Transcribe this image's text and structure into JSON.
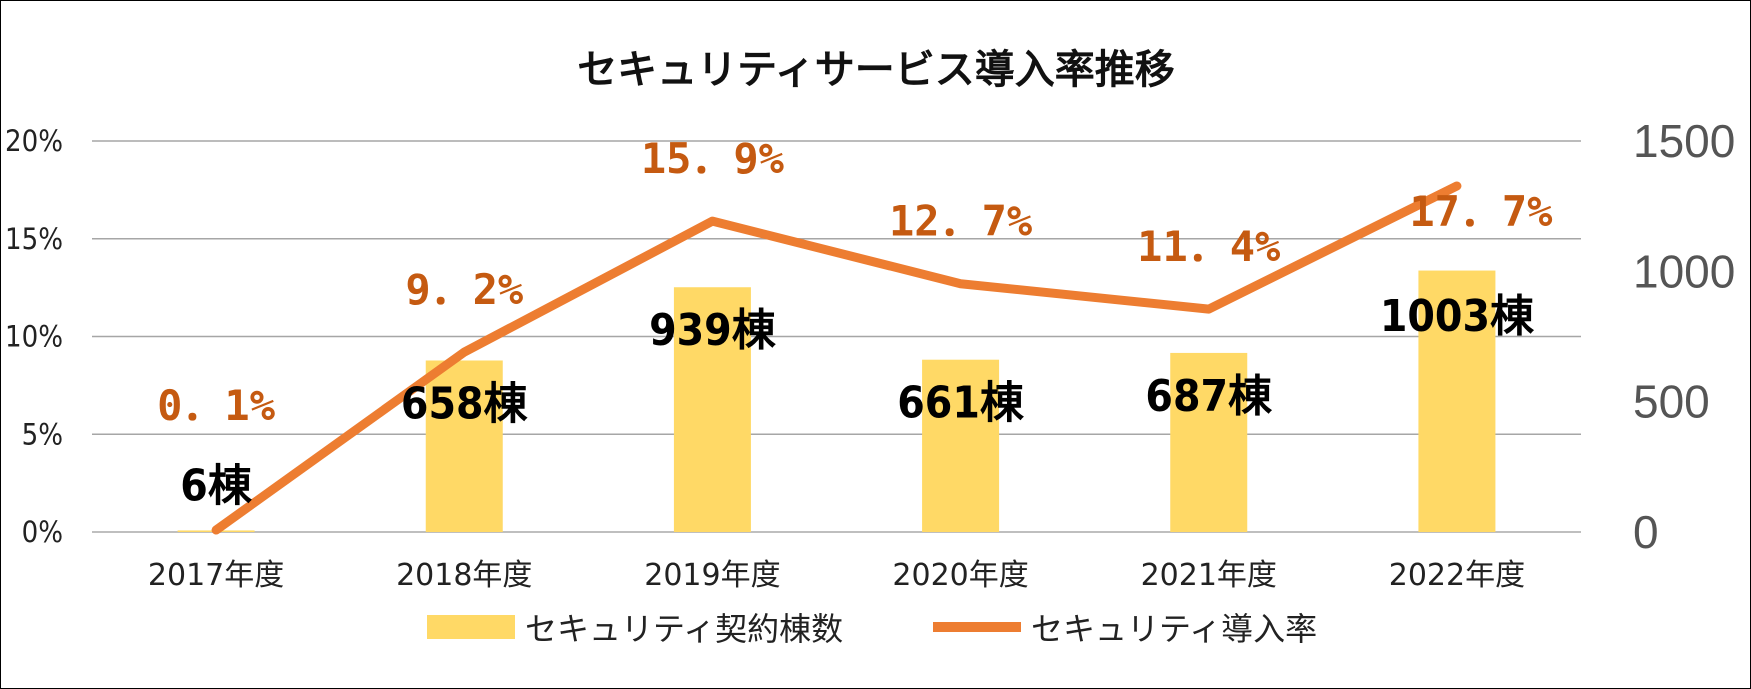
{
  "chart_data": {
    "type": "bar+line",
    "title": "セキュリティサービス導入率推移",
    "categories": [
      "2017年度",
      "2018年度",
      "2019年度",
      "2020年度",
      "2021年度",
      "2022年度"
    ],
    "series": [
      {
        "name": "セキュリティ契約棟数",
        "type": "bar",
        "axis": "right",
        "values": [
          6,
          658,
          939,
          661,
          687,
          1003
        ],
        "labels": [
          "6棟",
          "658棟",
          "939棟",
          "661棟",
          "687棟",
          "1003棟"
        ],
        "color": "#ffd966"
      },
      {
        "name": "セキュリティ導入率",
        "type": "line",
        "axis": "left",
        "values": [
          0.1,
          9.2,
          15.9,
          12.7,
          11.4,
          17.7
        ],
        "labels": [
          "0．1%",
          "9．2%",
          "15．9%",
          "12．7%",
          "11．4%",
          "17．7%"
        ],
        "color": "#ed7d31",
        "label_color": "#c55a11"
      }
    ],
    "y_left": {
      "min": 0,
      "max": 20,
      "ticks": [
        "0%",
        "5%",
        "10%",
        "15%",
        "20%"
      ]
    },
    "y_right": {
      "min": 0,
      "max": 1500,
      "ticks": [
        "0",
        "500",
        "1000",
        "1500"
      ]
    },
    "grid": true,
    "legend": "bottom"
  }
}
